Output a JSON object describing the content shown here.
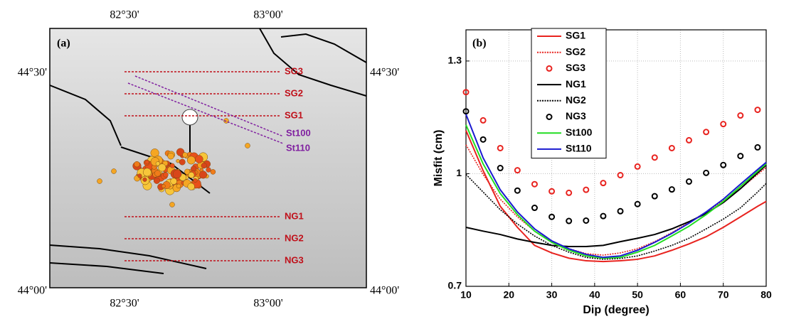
{
  "map": {
    "panel_label": "(a)",
    "lon_ticks": [
      "82°30'",
      "83°00'"
    ],
    "lat_ticks": [
      "44°30'",
      "44°00'"
    ],
    "profiles": [
      "SG3",
      "SG2",
      "SG1",
      "St100",
      "St110",
      "NG1",
      "NG2",
      "NG3"
    ]
  },
  "chart_data": {
    "type": "line",
    "panel_label": "(b)",
    "x_label": "Dip (degree)",
    "y_label": "Misfit (cm)",
    "xlim": [
      10,
      80
    ],
    "ylim": [
      0.7,
      1.383
    ],
    "xticks": [
      10,
      20,
      30,
      40,
      50,
      60,
      70,
      80
    ],
    "yticks": [
      0.7,
      1,
      1.3
    ],
    "grid": true,
    "x": [
      10,
      14,
      18,
      22,
      26,
      30,
      34,
      38,
      42,
      46,
      50,
      54,
      58,
      62,
      66,
      70,
      74,
      78,
      80
    ],
    "series": [
      {
        "name": "SG1",
        "color": "#e8231f",
        "style": "solid",
        "values": [
          1.115,
          1.008,
          0.913,
          0.857,
          0.809,
          0.789,
          0.775,
          0.768,
          0.766,
          0.768,
          0.772,
          0.781,
          0.796,
          0.813,
          0.832,
          0.857,
          0.885,
          0.913,
          0.926
        ]
      },
      {
        "name": "SG2",
        "color": "#e8231f",
        "style": "dotted",
        "values": [
          1.077,
          0.998,
          0.932,
          0.885,
          0.847,
          0.819,
          0.8,
          0.787,
          0.783,
          0.789,
          0.8,
          0.819,
          0.843,
          0.87,
          0.898,
          0.928,
          0.96,
          0.998,
          1.017
        ]
      },
      {
        "name": "SG3",
        "color": "#e8231f",
        "style": "circle",
        "values": [
          1.217,
          1.142,
          1.068,
          1.009,
          0.972,
          0.953,
          0.949,
          0.957,
          0.975,
          0.996,
          1.019,
          1.043,
          1.068,
          1.089,
          1.111,
          1.132,
          1.155,
          1.17,
          null
        ]
      },
      {
        "name": "NG1",
        "color": "#000000",
        "style": "solid",
        "values": [
          0.857,
          0.847,
          0.838,
          0.826,
          0.817,
          0.809,
          0.806,
          0.806,
          0.809,
          0.819,
          0.828,
          0.838,
          0.853,
          0.872,
          0.894,
          0.923,
          0.96,
          1.002,
          1.023
        ]
      },
      {
        "name": "NG2",
        "color": "#000000",
        "style": "dotted",
        "values": [
          0.998,
          0.951,
          0.904,
          0.866,
          0.834,
          0.809,
          0.791,
          0.777,
          0.772,
          0.774,
          0.781,
          0.794,
          0.809,
          0.828,
          0.853,
          0.879,
          0.909,
          0.951,
          0.974
        ]
      },
      {
        "name": "NG3",
        "color": "#000000",
        "style": "circle",
        "values": [
          1.166,
          1.091,
          1.015,
          0.955,
          0.909,
          0.885,
          0.874,
          0.875,
          0.887,
          0.9,
          0.919,
          0.94,
          0.958,
          0.979,
          1.002,
          1.023,
          1.047,
          1.07,
          null
        ]
      },
      {
        "name": "St100",
        "color": "#22dd22",
        "style": "solid",
        "values": [
          1.13,
          1.026,
          0.947,
          0.891,
          0.847,
          0.817,
          0.796,
          0.781,
          0.775,
          0.777,
          0.791,
          0.809,
          0.834,
          0.86,
          0.891,
          0.926,
          0.966,
          1.006,
          1.026
        ]
      },
      {
        "name": "St110",
        "color": "#1a1ad0",
        "style": "solid",
        "values": [
          1.158,
          1.042,
          0.957,
          0.898,
          0.853,
          0.821,
          0.8,
          0.785,
          0.777,
          0.781,
          0.796,
          0.817,
          0.841,
          0.868,
          0.898,
          0.932,
          0.972,
          1.011,
          1.03
        ]
      }
    ]
  }
}
